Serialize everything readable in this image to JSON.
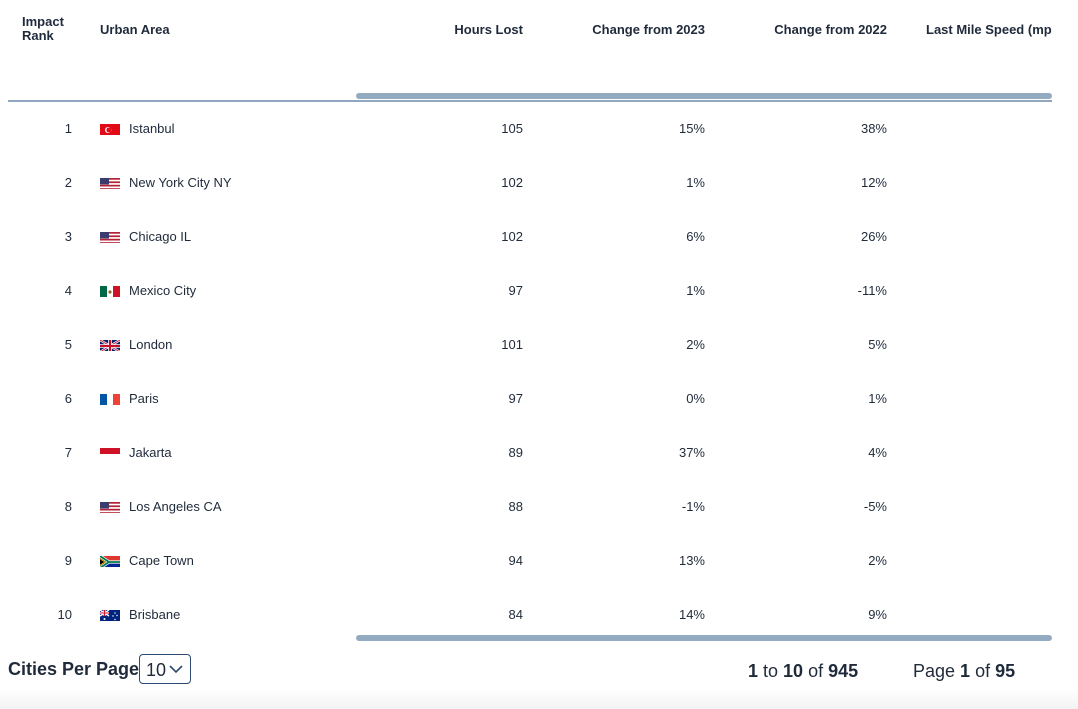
{
  "columns": {
    "rank": "Impact\nRank",
    "rank_line1": "Impact",
    "rank_line2": "Rank",
    "urban_area": "Urban Area",
    "hours_lost": "Hours Lost",
    "change_2023": "Change from 2023",
    "change_2022": "Change from 2022",
    "last_mile_speed": "Last Mile Speed (mp"
  },
  "rows": [
    {
      "rank": "1",
      "city": "Istanbul",
      "flag": "turkey-flag-icon",
      "hours": "105",
      "c23": "15%",
      "c22": "38%"
    },
    {
      "rank": "2",
      "city": "New York City NY",
      "flag": "usa-flag-icon",
      "hours": "102",
      "c23": "1%",
      "c22": "12%"
    },
    {
      "rank": "3",
      "city": "Chicago IL",
      "flag": "usa-flag-icon",
      "hours": "102",
      "c23": "6%",
      "c22": "26%"
    },
    {
      "rank": "4",
      "city": "Mexico City",
      "flag": "mexico-flag-icon",
      "hours": "97",
      "c23": "1%",
      "c22": "-11%"
    },
    {
      "rank": "5",
      "city": "London",
      "flag": "uk-flag-icon",
      "hours": "101",
      "c23": "2%",
      "c22": "5%"
    },
    {
      "rank": "6",
      "city": "Paris",
      "flag": "france-flag-icon",
      "hours": "97",
      "c23": "0%",
      "c22": "1%"
    },
    {
      "rank": "7",
      "city": "Jakarta",
      "flag": "indonesia-flag-icon",
      "hours": "89",
      "c23": "37%",
      "c22": "4%"
    },
    {
      "rank": "8",
      "city": "Los Angeles CA",
      "flag": "usa-flag-icon",
      "hours": "88",
      "c23": "-1%",
      "c22": "-5%"
    },
    {
      "rank": "9",
      "city": "Cape Town",
      "flag": "south-africa-flag-icon",
      "hours": "94",
      "c23": "13%",
      "c22": "2%"
    },
    {
      "rank": "10",
      "city": "Brisbane",
      "flag": "australia-flag-icon",
      "hours": "84",
      "c23": "14%",
      "c22": "9%"
    }
  ],
  "footer": {
    "per_page_label": "Cities Per Page",
    "per_page_value": "10",
    "range_start": "1",
    "range_to": " to ",
    "range_end": "10",
    "range_of": " of ",
    "range_total": "945",
    "page_prefix": "Page ",
    "page_current": "1",
    "page_of": " of ",
    "page_total": "95"
  },
  "colors": {
    "text": "#1f2a3a",
    "scrollbar": "#92abc0",
    "select_border": "#2d4a73"
  }
}
